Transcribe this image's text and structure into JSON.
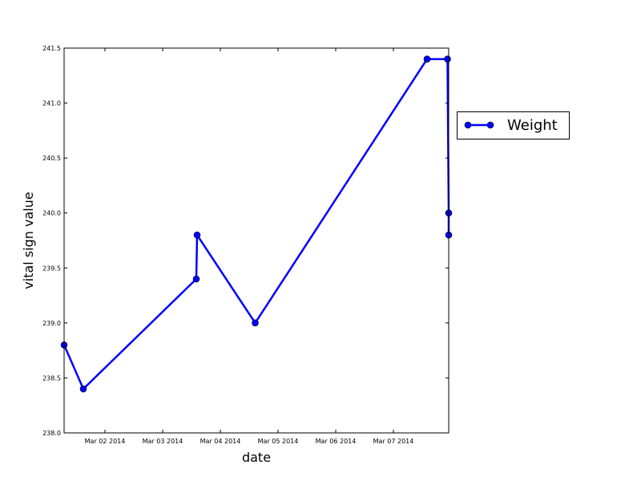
{
  "chart_data": {
    "type": "line",
    "title": "",
    "xlabel": "date",
    "ylabel": "vital sign value",
    "x_tick_labels": [
      "Mar 02 2014",
      "Mar 03 2014",
      "Mar 04 2014",
      "Mar 05 2014",
      "Mar 06 2014",
      "Mar 07 2014"
    ],
    "x_tick_dates": [
      "2014-03-02",
      "2014-03-03",
      "2014-03-04",
      "2014-03-05",
      "2014-03-06",
      "2014-03-07"
    ],
    "y_ticks": [
      238.0,
      238.5,
      239.0,
      239.5,
      240.0,
      240.5,
      241.0,
      241.5
    ],
    "y_tick_labels": [
      "238.0",
      "238.5",
      "239.0",
      "239.5",
      "240.0",
      "240.5",
      "241.0",
      "241.5"
    ],
    "xlim": [
      "2014-03-01 07:00",
      "2014-03-07 23:00"
    ],
    "ylim": [
      238.0,
      241.5
    ],
    "grid": false,
    "legend_position": "outside-right",
    "series": [
      {
        "name": "Weight",
        "color": "#0000ff",
        "marker": "circle",
        "points": [
          {
            "x": "2014-03-01 07:00",
            "y": 238.8
          },
          {
            "x": "2014-03-01 15:00",
            "y": 238.4
          },
          {
            "x": "2014-03-03 14:00",
            "y": 239.4
          },
          {
            "x": "2014-03-03 14:20",
            "y": 239.8
          },
          {
            "x": "2014-03-04 14:30",
            "y": 239.0
          },
          {
            "x": "2014-03-07 14:00",
            "y": 241.4
          },
          {
            "x": "2014-03-07 22:30",
            "y": 241.4
          },
          {
            "x": "2014-03-07 23:00",
            "y": 240.0
          },
          {
            "x": "2014-03-07 23:00",
            "y": 239.8
          }
        ]
      }
    ]
  }
}
